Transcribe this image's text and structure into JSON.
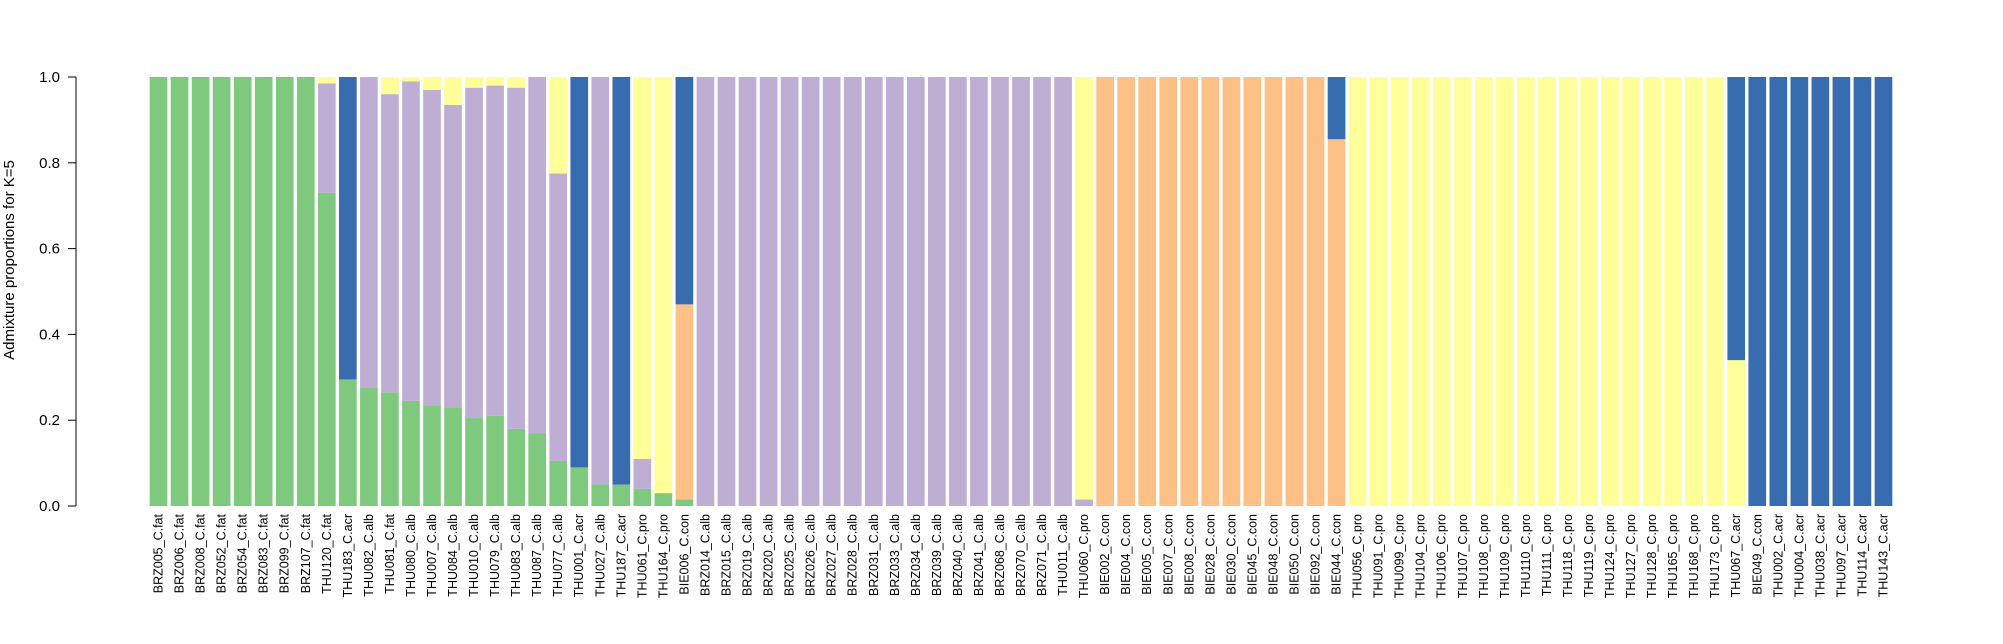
{
  "chart_data": {
    "type": "bar",
    "stacked": true,
    "title": "",
    "xlabel": "",
    "ylabel": "Admixture proportions for K=5",
    "ylim": [
      0,
      1
    ],
    "yticks": [
      "0.0",
      "0.2",
      "0.4",
      "0.6",
      "0.8",
      "1.0"
    ],
    "grid": false,
    "legend": "none",
    "colors": [
      "#7fc97f",
      "#beaed4",
      "#fdc086",
      "#ffff99",
      "#386cb0"
    ],
    "categories": [
      "BRZ005_C.fat",
      "BRZ006_C.fat",
      "BRZ008_C.fat",
      "BRZ052_C.fat",
      "BRZ054_C.fat",
      "BRZ083_C.fat",
      "BRZ099_C.fat",
      "BRZ107_C.fat",
      "THU120_C.fat",
      "THU183_C.acr",
      "THU082_C.alb",
      "THU081_C.fat",
      "THU080_C.alb",
      "THU007_C.alb",
      "THU084_C.alb",
      "THU010_C.alb",
      "THU079_C.alb",
      "THU083_C.alb",
      "THU087_C.alb",
      "THU077_C.alb",
      "THU001_C.acr",
      "THU027_C.alb",
      "THU187_C.acr",
      "THU061_C.pro",
      "THU164_C.pro",
      "BIE006_C.con",
      "BRZ014_C.alb",
      "BRZ015_C.alb",
      "BRZ019_C.alb",
      "BRZ020_C.alb",
      "BRZ025_C.alb",
      "BRZ026_C.alb",
      "BRZ027_C.alb",
      "BRZ028_C.alb",
      "BRZ031_C.alb",
      "BRZ033_C.alb",
      "BRZ034_C.alb",
      "BRZ039_C.alb",
      "BRZ040_C.alb",
      "BRZ041_C.alb",
      "BRZ068_C.alb",
      "BRZ070_C.alb",
      "BRZ071_C.alb",
      "THU011_C.alb",
      "THU060_C.pro",
      "BIE002_C.con",
      "BIE004_C.con",
      "BIE005_C.con",
      "BIE007_C.con",
      "BIE008_C.con",
      "BIE028_C.con",
      "BIE030_C.con",
      "BIE045_C.con",
      "BIE048_C.con",
      "BIE050_C.con",
      "BIE092_C.con",
      "BIE044_C.con",
      "THU056_C.pro",
      "THU091_C.pro",
      "THU099_C.pro",
      "THU104_C.pro",
      "THU106_C.pro",
      "THU107_C.pro",
      "THU108_C.pro",
      "THU109_C.pro",
      "THU110_C.pro",
      "THU111_C.pro",
      "THU118_C.pro",
      "THU119_C.pro",
      "THU124_C.pro",
      "THU127_C.pro",
      "THU128_C.pro",
      "THU165_C.pro",
      "THU168_C.pro",
      "THU173_C.pro",
      "THU067_C.acr",
      "BIE049_C.con",
      "THU002_C.acr",
      "THU004_C.acr",
      "THU038_C.acr",
      "THU097_C.acr",
      "THU114_C.acr",
      "THU143_C.acr"
    ],
    "series": [
      {
        "color": "#7fc97f",
        "values": [
          1,
          1,
          1,
          1,
          1,
          1,
          1,
          1,
          0.73,
          0.295,
          0.275,
          0.265,
          0.245,
          0.235,
          0.23,
          0.205,
          0.21,
          0.18,
          0.17,
          0.105,
          0.09,
          0.05,
          0.05,
          0.04,
          0.03,
          0.015,
          0,
          0,
          0,
          0,
          0,
          0,
          0,
          0,
          0,
          0,
          0,
          0,
          0,
          0,
          0,
          0,
          0,
          0,
          0,
          0,
          0,
          0,
          0,
          0,
          0,
          0,
          0,
          0,
          0,
          0,
          0,
          0,
          0,
          0,
          0,
          0,
          0,
          0,
          0,
          0,
          0,
          0,
          0,
          0,
          0,
          0,
          0,
          0,
          0,
          0,
          0,
          0,
          0,
          0,
          0,
          0,
          0
        ]
      },
      {
        "color": "#beaed4",
        "values": [
          0,
          0,
          0,
          0,
          0,
          0,
          0,
          0,
          0.255,
          0,
          0.725,
          0.695,
          0.745,
          0.735,
          0.705,
          0.77,
          0.77,
          0.795,
          0.83,
          0.67,
          0,
          0.95,
          0,
          0.07,
          0,
          0,
          1,
          1,
          1,
          1,
          1,
          1,
          1,
          1,
          1,
          1,
          1,
          1,
          1,
          1,
          1,
          1,
          1,
          1,
          0.015,
          0,
          0,
          0,
          0,
          0,
          0,
          0,
          0,
          0,
          0,
          0,
          0,
          0,
          0,
          0,
          0,
          0,
          0,
          0,
          0,
          0,
          0,
          0,
          0,
          0,
          0,
          0,
          0,
          0,
          0,
          0,
          0,
          0,
          0,
          0,
          0,
          0,
          0
        ]
      },
      {
        "color": "#fdc086",
        "values": [
          0,
          0,
          0,
          0,
          0,
          0,
          0,
          0,
          0,
          0,
          0,
          0,
          0,
          0,
          0,
          0,
          0,
          0,
          0,
          0,
          0,
          0,
          0,
          0,
          0,
          0.455,
          0,
          0,
          0,
          0,
          0,
          0,
          0,
          0,
          0,
          0,
          0,
          0,
          0,
          0,
          0,
          0,
          0,
          0,
          0,
          1,
          1,
          1,
          1,
          1,
          1,
          1,
          1,
          1,
          1,
          1,
          0.855,
          0,
          0,
          0,
          0,
          0,
          0,
          0,
          0,
          0,
          0,
          0,
          0,
          0,
          0,
          0,
          0,
          0,
          0,
          0,
          0,
          0,
          0,
          0,
          0,
          0,
          0
        ]
      },
      {
        "color": "#ffff99",
        "values": [
          0,
          0,
          0,
          0,
          0,
          0,
          0,
          0,
          0.015,
          0,
          0,
          0.04,
          0.01,
          0.03,
          0.065,
          0.025,
          0.02,
          0.025,
          0,
          0.225,
          0,
          0,
          0,
          0.89,
          0.97,
          0,
          0,
          0,
          0,
          0,
          0,
          0,
          0,
          0,
          0,
          0,
          0,
          0,
          0,
          0,
          0,
          0,
          0,
          0,
          0.985,
          0,
          0,
          0,
          0,
          0,
          0,
          0,
          0,
          0,
          0,
          0,
          0,
          1,
          1,
          1,
          1,
          1,
          1,
          1,
          1,
          1,
          1,
          1,
          1,
          1,
          1,
          1,
          1,
          1,
          1,
          0.34,
          0,
          0,
          0,
          0,
          0,
          0,
          0
        ]
      },
      {
        "color": "#386cb0",
        "values": [
          0,
          0,
          0,
          0,
          0,
          0,
          0,
          0,
          0,
          0.705,
          0,
          0,
          0,
          0,
          0,
          0,
          0,
          0,
          0,
          0,
          0.91,
          0,
          0.95,
          0,
          0,
          0.53,
          0,
          0,
          0,
          0,
          0,
          0,
          0,
          0,
          0,
          0,
          0,
          0,
          0,
          0,
          0,
          0,
          0,
          0,
          0,
          0,
          0,
          0,
          0,
          0,
          0,
          0,
          0,
          0,
          0,
          0,
          0.145,
          0,
          0,
          0,
          0,
          0,
          0,
          0,
          0,
          0,
          0,
          0,
          0,
          0,
          0,
          0,
          0,
          0,
          0,
          0.66,
          1,
          1,
          1,
          1,
          1,
          1,
          1
        ]
      }
    ]
  }
}
